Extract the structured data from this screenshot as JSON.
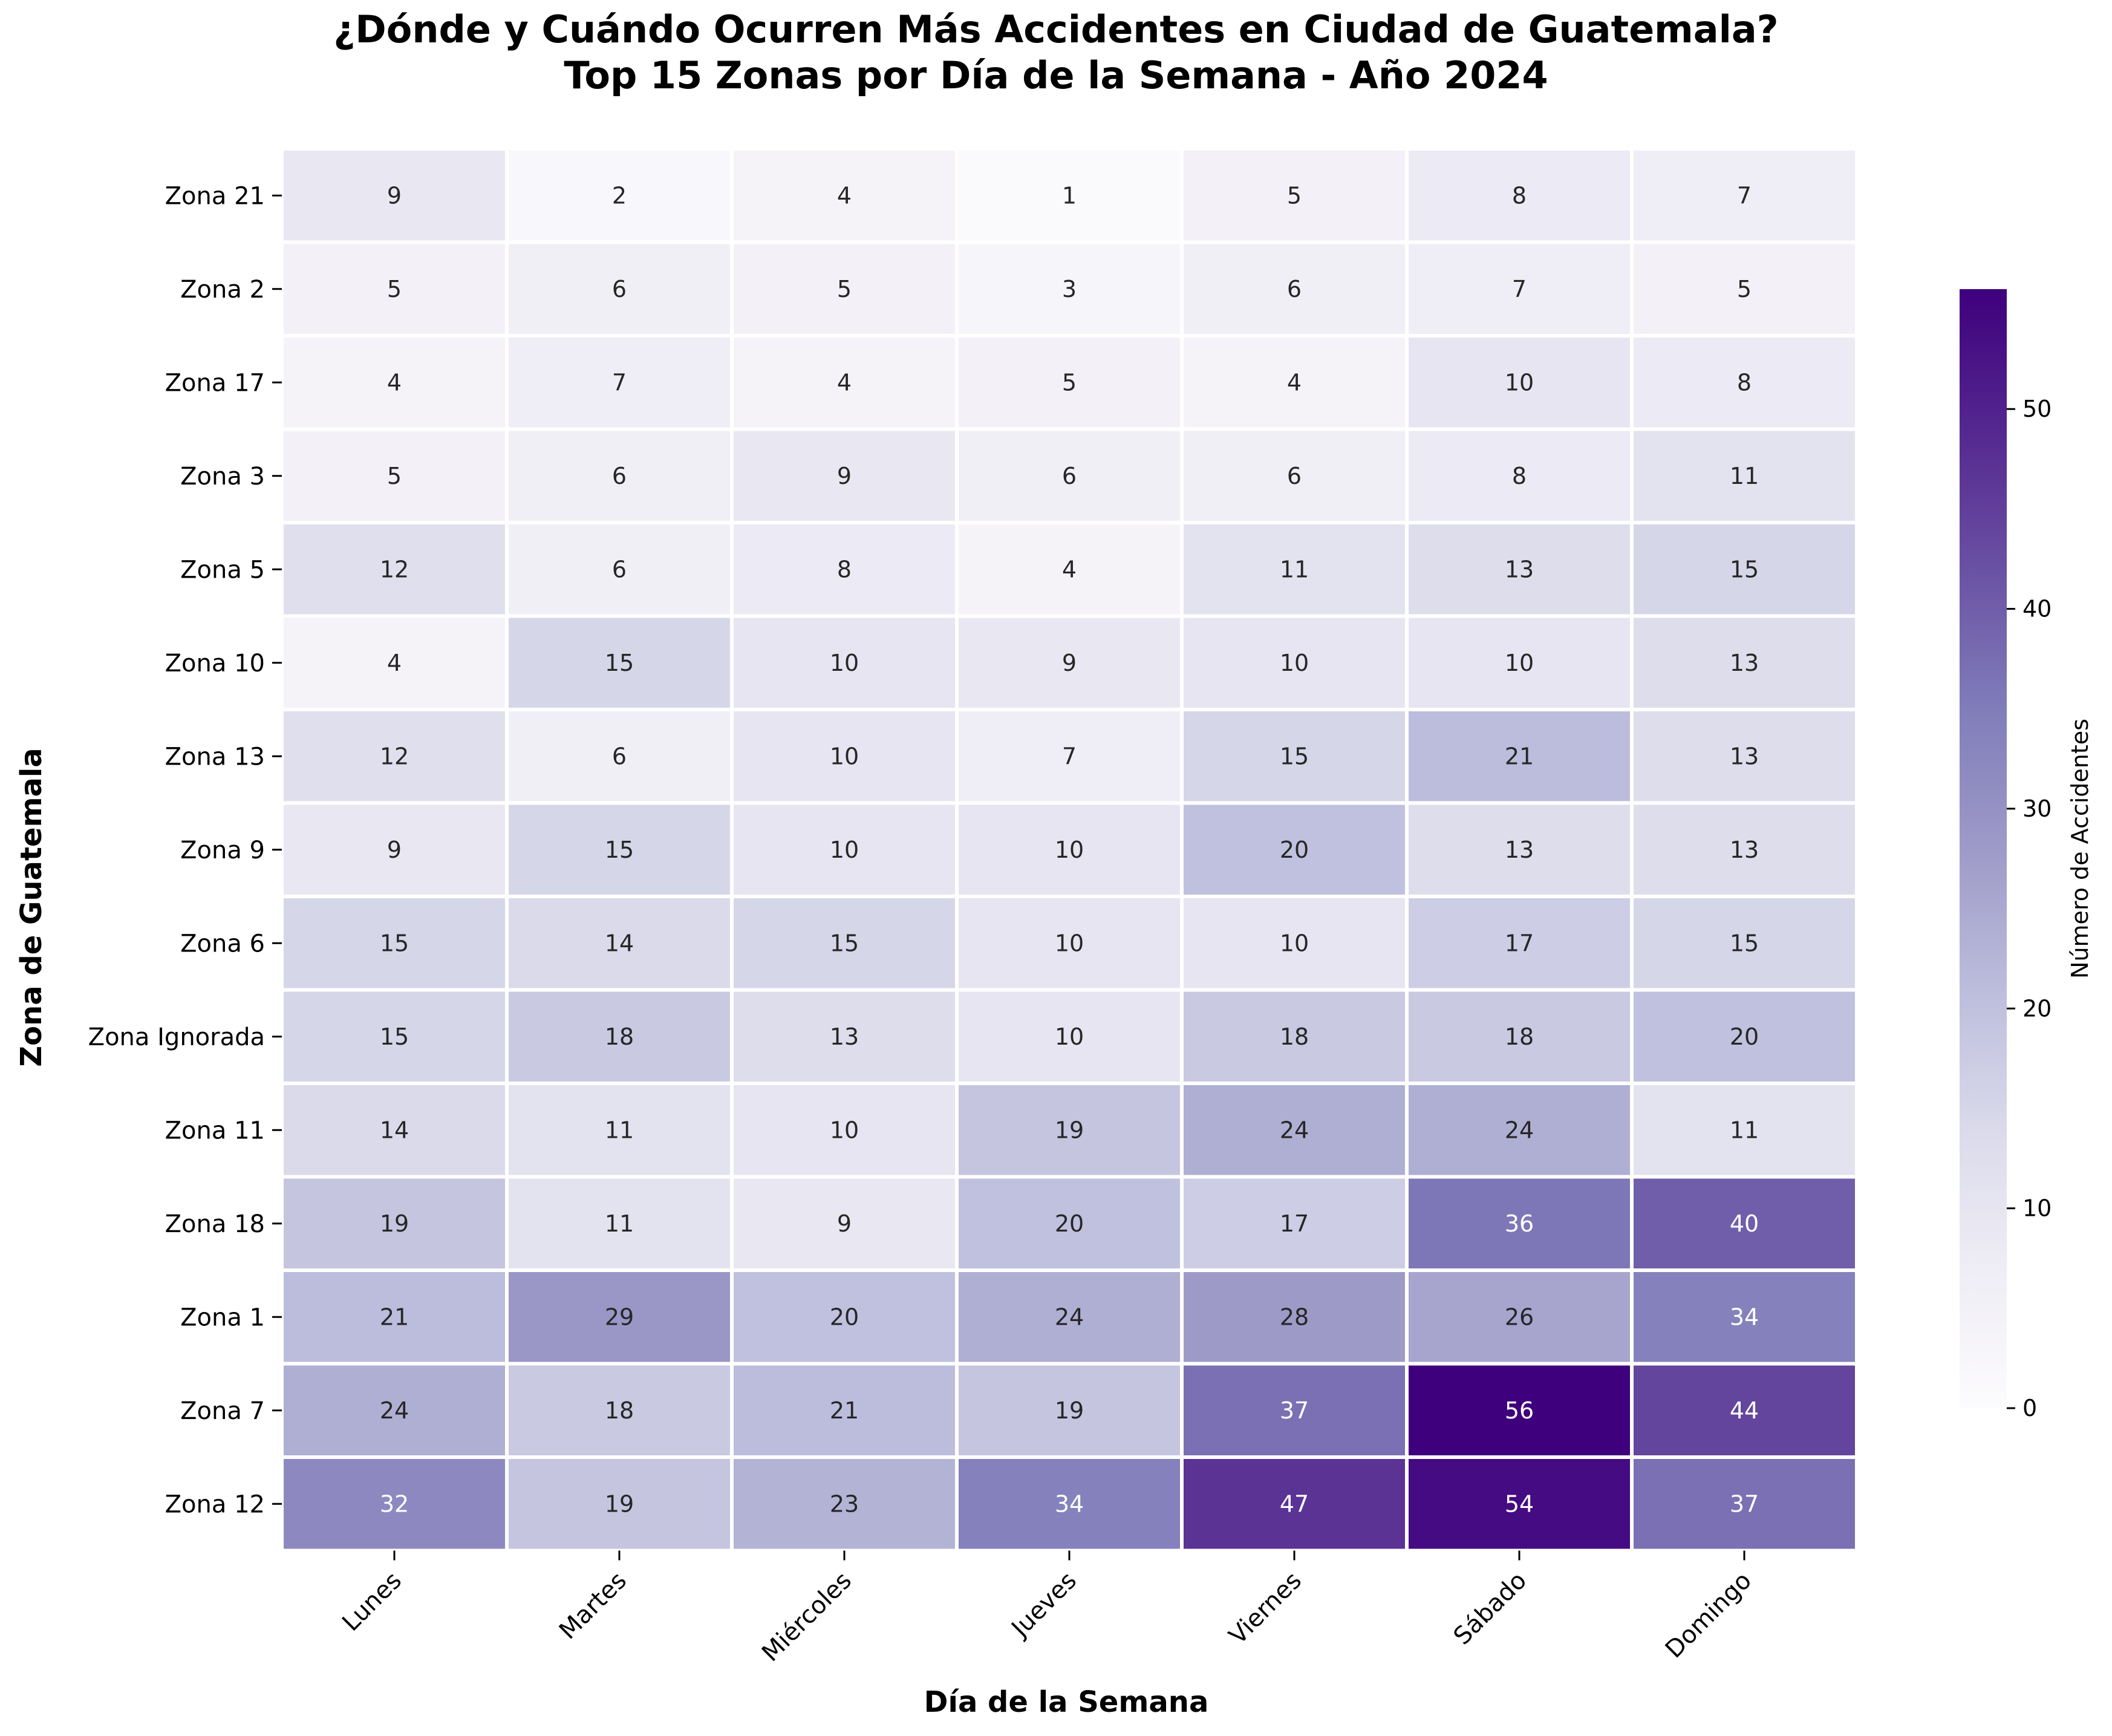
{
  "chart_data": {
    "type": "heatmap",
    "title": "¿Dónde y Cuándo Ocurren Más Accidentes en Ciudad de Guatemala?",
    "subtitle": "Top 15 Zonas por Día de la Semana - Año 2024",
    "xlabel": "Día de la Semana",
    "ylabel": "Zona de Guatemala",
    "x_categories": [
      "Lunes",
      "Martes",
      "Miércoles",
      "Jueves",
      "Viernes",
      "Sábado",
      "Domingo"
    ],
    "y_categories": [
      "Zona 21",
      "Zona 2",
      "Zona 17",
      "Zona 3",
      "Zona 5",
      "Zona 10",
      "Zona 13",
      "Zona 9",
      "Zona 6",
      "Zona Ignorada",
      "Zona 11",
      "Zona 18",
      "Zona 1",
      "Zona 7",
      "Zona 12"
    ],
    "values": [
      [
        9,
        2,
        4,
        1,
        5,
        8,
        7
      ],
      [
        5,
        6,
        5,
        3,
        6,
        7,
        5
      ],
      [
        4,
        7,
        4,
        5,
        4,
        10,
        8
      ],
      [
        5,
        6,
        9,
        6,
        6,
        8,
        11
      ],
      [
        12,
        6,
        8,
        4,
        11,
        13,
        15
      ],
      [
        4,
        15,
        10,
        9,
        10,
        10,
        13
      ],
      [
        12,
        6,
        10,
        7,
        15,
        21,
        13
      ],
      [
        9,
        15,
        10,
        10,
        20,
        13,
        13
      ],
      [
        15,
        14,
        15,
        10,
        10,
        17,
        15
      ],
      [
        15,
        18,
        13,
        10,
        18,
        18,
        20
      ],
      [
        14,
        11,
        10,
        19,
        24,
        24,
        11
      ],
      [
        19,
        11,
        9,
        20,
        17,
        36,
        40
      ],
      [
        21,
        29,
        20,
        24,
        28,
        26,
        34
      ],
      [
        24,
        18,
        21,
        19,
        37,
        56,
        44
      ],
      [
        32,
        19,
        23,
        34,
        47,
        54,
        37
      ]
    ],
    "colorbar": {
      "label": "Número de Accidentes",
      "range": [
        0,
        56
      ],
      "ticks": [
        0,
        10,
        20,
        30,
        40,
        50
      ],
      "colormap": "Purples",
      "colors": [
        "#fcfbfd",
        "#efedf5",
        "#dadaeb",
        "#bcbddc",
        "#9e9ac8",
        "#807dba",
        "#6a51a3",
        "#54278f",
        "#3f007d"
      ]
    },
    "annotations": "cell values shown",
    "grid": false
  }
}
